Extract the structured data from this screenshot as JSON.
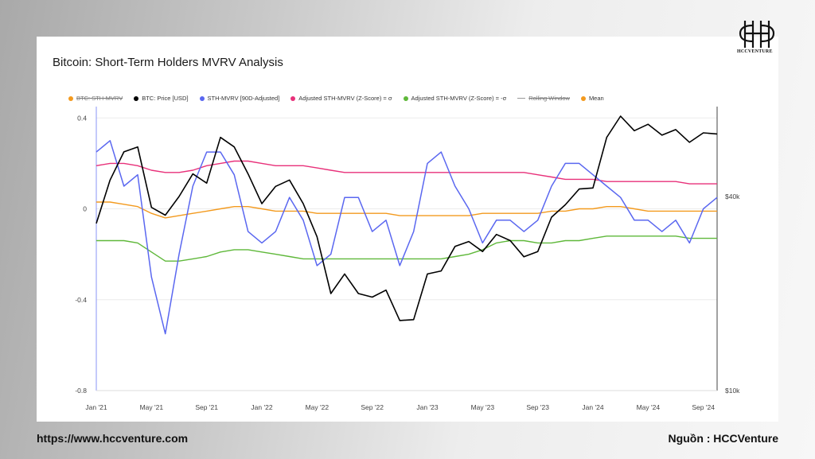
{
  "header": {
    "logo_text": "HCCVENTURE",
    "logo_icon": "hcc-monogram-icon"
  },
  "footer": {
    "url": "https://www.hccventure.com",
    "source": "Nguồn : HCCVenture"
  },
  "colors": {
    "sth_mvrv": "#5a67f0",
    "price": "#000000",
    "plus_sigma": "#e8317a",
    "minus_sigma": "#5fb83a",
    "mean": "#f39a1e",
    "grid": "#ececec"
  },
  "chart_data": {
    "type": "line",
    "title": "Bitcoin: Short-Term Holders MVRV Analysis",
    "legend": [
      {
        "label": "BTC: STH-MVRV",
        "color": "#f39a1e",
        "hidden": true
      },
      {
        "label": "BTC: Price [USD]",
        "color": "#000000",
        "hidden": false
      },
      {
        "label": "STH-MVRV [90D-Adjusted]",
        "color": "#5a67f0",
        "hidden": false
      },
      {
        "label": "Adjusted STH-MVRV (Z-Score) = σ",
        "color": "#e8317a",
        "hidden": false
      },
      {
        "label": "Adjusted STH-MVRV (Z-Score) = -σ",
        "color": "#5fb83a",
        "hidden": false
      },
      {
        "label": "Rolling Window",
        "color": "#999999",
        "hidden": true,
        "style": "line"
      },
      {
        "label": "Mean",
        "color": "#f39a1e",
        "hidden": false
      }
    ],
    "x_ticks": [
      "Jan '21",
      "May '21",
      "Sep '21",
      "Jan '22",
      "May '22",
      "Sep '22",
      "Jan '23",
      "May '23",
      "Sep '23",
      "Jan '24",
      "May '24",
      "Sep '24"
    ],
    "y_left_ticks": [
      "0.4",
      "0",
      "-0.4",
      "-0.8"
    ],
    "y_left_range": [
      -0.8,
      0.45
    ],
    "y_right_ticks": [
      "$40k",
      "$10k"
    ],
    "y_right_scale": "log",
    "x": [
      "2021-01",
      "2021-02",
      "2021-03",
      "2021-04",
      "2021-05",
      "2021-06",
      "2021-07",
      "2021-08",
      "2021-09",
      "2021-10",
      "2021-11",
      "2021-12",
      "2022-01",
      "2022-02",
      "2022-03",
      "2022-04",
      "2022-05",
      "2022-06",
      "2022-07",
      "2022-08",
      "2022-09",
      "2022-10",
      "2022-11",
      "2022-12",
      "2023-01",
      "2023-02",
      "2023-03",
      "2023-04",
      "2023-05",
      "2023-06",
      "2023-07",
      "2023-08",
      "2023-09",
      "2023-10",
      "2023-11",
      "2023-12",
      "2024-01",
      "2024-02",
      "2024-03",
      "2024-04",
      "2024-05",
      "2024-06",
      "2024-07",
      "2024-08",
      "2024-09",
      "2024-10"
    ],
    "series": [
      {
        "name": "STH-MVRV [90D-Adjusted]",
        "axis": "left",
        "values": [
          0.25,
          0.3,
          0.1,
          0.15,
          -0.3,
          -0.55,
          -0.2,
          0.1,
          0.25,
          0.25,
          0.15,
          -0.1,
          -0.15,
          -0.1,
          0.05,
          -0.05,
          -0.25,
          -0.2,
          0.05,
          0.05,
          -0.1,
          -0.05,
          -0.25,
          -0.1,
          0.2,
          0.25,
          0.1,
          0.0,
          -0.15,
          -0.05,
          -0.05,
          -0.1,
          -0.05,
          0.1,
          0.2,
          0.2,
          0.15,
          0.1,
          0.05,
          -0.05,
          -0.05,
          -0.1,
          -0.05,
          -0.15,
          0.0,
          0.05
        ]
      },
      {
        "name": "BTC: Price [USD]",
        "axis": "right",
        "values": [
          33000,
          45000,
          55000,
          57000,
          37000,
          35000,
          40000,
          47000,
          44000,
          61000,
          57000,
          47000,
          38000,
          43000,
          45000,
          38000,
          30000,
          20000,
          23000,
          20000,
          19500,
          20500,
          16500,
          16600,
          23000,
          23500,
          28000,
          29000,
          27000,
          30500,
          29200,
          26000,
          27000,
          34500,
          37700,
          42200,
          42500,
          61000,
          71000,
          64000,
          67000,
          62000,
          64500,
          58900,
          63000,
          62500
        ]
      },
      {
        "name": "Adjusted STH-MVRV (Z-Score) = σ",
        "axis": "left",
        "values": [
          0.19,
          0.2,
          0.2,
          0.19,
          0.17,
          0.16,
          0.16,
          0.17,
          0.19,
          0.2,
          0.21,
          0.21,
          0.2,
          0.19,
          0.19,
          0.19,
          0.18,
          0.17,
          0.16,
          0.16,
          0.16,
          0.16,
          0.16,
          0.16,
          0.16,
          0.16,
          0.16,
          0.16,
          0.16,
          0.16,
          0.16,
          0.16,
          0.15,
          0.14,
          0.13,
          0.13,
          0.13,
          0.12,
          0.12,
          0.12,
          0.12,
          0.12,
          0.12,
          0.11,
          0.11,
          0.11
        ]
      },
      {
        "name": "Mean",
        "axis": "left",
        "values": [
          0.03,
          0.03,
          0.02,
          0.01,
          -0.02,
          -0.04,
          -0.03,
          -0.02,
          -0.01,
          0.0,
          0.01,
          0.01,
          0.0,
          -0.01,
          -0.01,
          -0.01,
          -0.02,
          -0.02,
          -0.02,
          -0.02,
          -0.02,
          -0.02,
          -0.03,
          -0.03,
          -0.03,
          -0.03,
          -0.03,
          -0.03,
          -0.02,
          -0.02,
          -0.02,
          -0.02,
          -0.02,
          -0.01,
          -0.01,
          0.0,
          0.0,
          0.01,
          0.01,
          0.0,
          -0.01,
          -0.01,
          -0.01,
          -0.01,
          -0.01,
          -0.01
        ]
      },
      {
        "name": "Adjusted STH-MVRV (Z-Score) = -σ",
        "axis": "left",
        "values": [
          -0.14,
          -0.14,
          -0.14,
          -0.15,
          -0.19,
          -0.23,
          -0.23,
          -0.22,
          -0.21,
          -0.19,
          -0.18,
          -0.18,
          -0.19,
          -0.2,
          -0.21,
          -0.22,
          -0.22,
          -0.22,
          -0.22,
          -0.22,
          -0.22,
          -0.22,
          -0.22,
          -0.22,
          -0.22,
          -0.22,
          -0.21,
          -0.2,
          -0.18,
          -0.15,
          -0.14,
          -0.14,
          -0.15,
          -0.15,
          -0.14,
          -0.14,
          -0.13,
          -0.12,
          -0.12,
          -0.12,
          -0.12,
          -0.12,
          -0.12,
          -0.13,
          -0.13,
          -0.13
        ]
      }
    ]
  }
}
